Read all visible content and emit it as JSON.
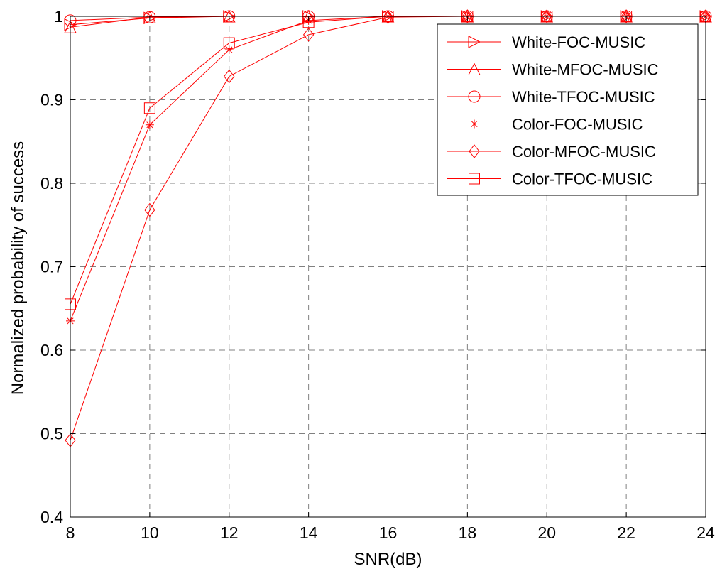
{
  "chart_data": {
    "type": "line",
    "title": "",
    "xlabel": "SNR(dB)",
    "ylabel": "Normalized probability of success",
    "x": [
      8,
      10,
      12,
      14,
      16,
      18,
      20,
      22,
      24
    ],
    "xticks": [
      "8",
      "10",
      "12",
      "14",
      "16",
      "18",
      "20",
      "22",
      "24"
    ],
    "yticks": [
      "0.4",
      "0.5",
      "0.6",
      "0.7",
      "0.8",
      "0.9",
      "1"
    ],
    "xlim": [
      8,
      24
    ],
    "ylim": [
      0.4,
      1.0
    ],
    "grid": true,
    "legend_position": "top-right",
    "series": [
      {
        "name": "White-FOC-MUSIC",
        "marker": "triangle-right",
        "values": [
          0.99,
          0.998,
          1.0,
          1.0,
          1.0,
          1.0,
          1.0,
          1.0,
          1.0
        ]
      },
      {
        "name": "White-MFOC-MUSIC",
        "marker": "triangle-up",
        "values": [
          0.987,
          0.999,
          1.0,
          1.0,
          1.0,
          1.0,
          1.0,
          1.0,
          1.0
        ]
      },
      {
        "name": "White-TFOC-MUSIC",
        "marker": "circle",
        "values": [
          0.995,
          0.999,
          1.0,
          1.0,
          1.0,
          1.0,
          1.0,
          1.0,
          1.0
        ]
      },
      {
        "name": "Color-FOC-MUSIC",
        "marker": "star",
        "values": [
          0.635,
          0.87,
          0.96,
          0.995,
          1.0,
          1.0,
          1.0,
          1.0,
          1.0
        ]
      },
      {
        "name": "Color-MFOC-MUSIC",
        "marker": "diamond",
        "values": [
          0.492,
          0.768,
          0.928,
          0.978,
          0.999,
          1.0,
          1.0,
          1.0,
          1.0
        ]
      },
      {
        "name": "Color-TFOC-MUSIC",
        "marker": "square",
        "values": [
          0.655,
          0.89,
          0.968,
          0.993,
          1.0,
          1.0,
          1.0,
          1.0,
          1.0
        ]
      }
    ],
    "colors": {
      "line": "#ff0000",
      "axis": "#000000",
      "grid": "#808080",
      "background": "#ffffff"
    }
  }
}
